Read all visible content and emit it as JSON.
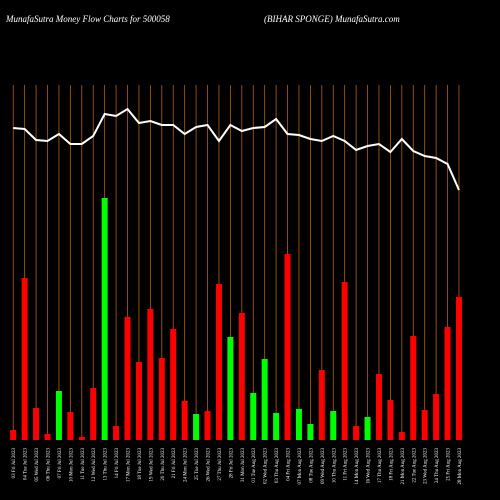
{
  "chart_data": {
    "type": "bar",
    "title": "MunafaSutra  Money Flow  Charts for 500058",
    "subtitle": "(BIHAR SPONGE) MunafaSutra.com",
    "categories": [
      "03 Fri Jul 2023",
      "04 Tue Jul 2023",
      "05 Wed Jul 2023",
      "06 Thu Jul 2023",
      "07 Fri Jul 2023",
      "10 Mon Jul 2023",
      "11 Tue Jul 2023",
      "12 Wed Jul 2023",
      "13 Thu Jul 2023",
      "14 Fri Jul 2023",
      "17 Mon Jul 2023",
      "18 Tue Jul 2023",
      "19 Wed Jul 2023",
      "20 Thu Jul 2023",
      "21 Fri Jul 2023",
      "24 Mon Jul 2023",
      "25 Tue Jul 2023",
      "26 Wed Jul 2023",
      "27 Thu Jul 2023",
      "28 Fri Jul 2023",
      "31 Mon Jul 2023",
      "01 Tue Aug 2023",
      "02 Wed Aug 2023",
      "03 Thu Aug 2023",
      "04 Fri Aug 2023",
      "07 Mon Aug 2023",
      "08 Tue Aug 2023",
      "09 Wed Aug 2023",
      "10 Thu Aug 2023",
      "11 Fri Aug 2023",
      "14 Mon Aug 2023",
      "16 Wed Aug 2023",
      "17 Thu Aug 2023",
      "18 Fri Aug 2023",
      "21 Mon Aug 2023",
      "22 Tue Aug 2023",
      "23 Wed Aug 2023",
      "24 Thu Aug 2023",
      "25 Fri Aug 2023",
      "28 Mon Aug 2023"
    ],
    "series": [
      {
        "type": "bar",
        "values": [
          10,
          162,
          32,
          6,
          49,
          28,
          3,
          52,
          242,
          14,
          123,
          78,
          131,
          82,
          111,
          39,
          26,
          29,
          156,
          103,
          127,
          47,
          81,
          27,
          186,
          31,
          16,
          70,
          29,
          158,
          14,
          23,
          66,
          40,
          8,
          104,
          30,
          46,
          113,
          143
        ],
        "colors": [
          "#ff0000",
          "#ff0000",
          "#ff0000",
          "#ff0000",
          "#00ff00",
          "#ff0000",
          "#ff0000",
          "#ff0000",
          "#00ff00",
          "#ff0000",
          "#ff0000",
          "#ff0000",
          "#ff0000",
          "#ff0000",
          "#ff0000",
          "#ff0000",
          "#00ff00",
          "#ff0000",
          "#ff0000",
          "#00ff00",
          "#ff0000",
          "#00ff00",
          "#00ff00",
          "#00ff00",
          "#ff0000",
          "#00ff00",
          "#00ff00",
          "#ff0000",
          "#00ff00",
          "#ff0000",
          "#ff0000",
          "#00ff00",
          "#ff0000",
          "#ff0000",
          "#ff0000",
          "#ff0000",
          "#ff0000",
          "#ff0000",
          "#ff0000",
          "#ff0000"
        ]
      },
      {
        "type": "line",
        "color": "#ffffff",
        "values": [
          312,
          311,
          300,
          299,
          306,
          296,
          296,
          304,
          326,
          324,
          331,
          317,
          319,
          315,
          315,
          306,
          313,
          315,
          299,
          315,
          309,
          312,
          313,
          321,
          306,
          305,
          301,
          299,
          304,
          299,
          290,
          294,
          296,
          288,
          301,
          289,
          284,
          282,
          276,
          250
        ]
      }
    ],
    "grid_color": "#b8600b"
  }
}
